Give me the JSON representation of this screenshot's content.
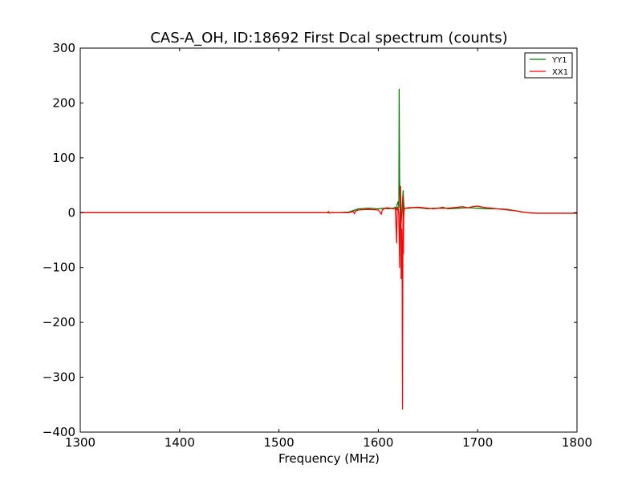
{
  "chart_data": {
    "type": "line",
    "title": "CAS-A_OH, ID:18692 First Dcal spectrum (counts)",
    "xlabel": "Frequency (MHz)",
    "ylabel": "",
    "xlim": [
      1300,
      1800
    ],
    "ylim": [
      -400,
      300
    ],
    "xticks": [
      1300,
      1400,
      1500,
      1600,
      1700,
      1800
    ],
    "yticks": [
      -400,
      -300,
      -200,
      -100,
      0,
      100,
      200,
      300
    ],
    "grid": false,
    "legend_position": "top-right",
    "series": [
      {
        "name": "YY1",
        "color": "#008000",
        "points": [
          [
            1300,
            0
          ],
          [
            1540,
            0
          ],
          [
            1560,
            0
          ],
          [
            1570,
            1
          ],
          [
            1575,
            4
          ],
          [
            1580,
            7
          ],
          [
            1590,
            8
          ],
          [
            1600,
            7
          ],
          [
            1605,
            8
          ],
          [
            1610,
            7
          ],
          [
            1615,
            8
          ],
          [
            1617,
            10
          ],
          [
            1618,
            5
          ],
          [
            1619,
            15
          ],
          [
            1620,
            20
          ],
          [
            1620.7,
            10
          ],
          [
            1621,
            225
          ],
          [
            1621.4,
            60
          ],
          [
            1622,
            20
          ],
          [
            1623,
            -20
          ],
          [
            1624,
            10
          ],
          [
            1625,
            40
          ],
          [
            1625.5,
            20
          ],
          [
            1626,
            8
          ],
          [
            1630,
            8
          ],
          [
            1635,
            9
          ],
          [
            1640,
            9
          ],
          [
            1650,
            7
          ],
          [
            1655,
            8
          ],
          [
            1660,
            8
          ],
          [
            1665,
            10
          ],
          [
            1670,
            7
          ],
          [
            1680,
            8
          ],
          [
            1690,
            9
          ],
          [
            1700,
            8
          ],
          [
            1710,
            7
          ],
          [
            1720,
            7
          ],
          [
            1730,
            6
          ],
          [
            1740,
            3
          ],
          [
            1750,
            0
          ],
          [
            1760,
            -1
          ],
          [
            1770,
            -1
          ],
          [
            1800,
            -1
          ]
        ]
      },
      {
        "name": "XX1",
        "color": "#ff0000",
        "points": [
          [
            1300,
            0
          ],
          [
            1548,
            0
          ],
          [
            1550,
            2
          ],
          [
            1551,
            -1
          ],
          [
            1552,
            0
          ],
          [
            1570,
            0
          ],
          [
            1575,
            2
          ],
          [
            1576,
            -2
          ],
          [
            1577,
            3
          ],
          [
            1580,
            5
          ],
          [
            1590,
            6
          ],
          [
            1600,
            5
          ],
          [
            1602,
            0
          ],
          [
            1603,
            -3
          ],
          [
            1604,
            5
          ],
          [
            1608,
            9
          ],
          [
            1612,
            8
          ],
          [
            1615,
            7
          ],
          [
            1617,
            8
          ],
          [
            1618,
            -30
          ],
          [
            1618.5,
            -55
          ],
          [
            1619,
            5
          ],
          [
            1619.5,
            10
          ],
          [
            1620,
            8
          ],
          [
            1620.5,
            0
          ],
          [
            1621,
            -40
          ],
          [
            1621.5,
            -100
          ],
          [
            1622,
            20
          ],
          [
            1622.4,
            48
          ],
          [
            1622.8,
            0
          ],
          [
            1623,
            -120
          ],
          [
            1623.5,
            -30
          ],
          [
            1624,
            -80
          ],
          [
            1624.4,
            -358
          ],
          [
            1624.8,
            -20
          ],
          [
            1625,
            30
          ],
          [
            1625.3,
            -75
          ],
          [
            1625.6,
            -10
          ],
          [
            1626,
            5
          ],
          [
            1627,
            8
          ],
          [
            1630,
            9
          ],
          [
            1640,
            10
          ],
          [
            1650,
            8
          ],
          [
            1655,
            7
          ],
          [
            1660,
            8
          ],
          [
            1670,
            8
          ],
          [
            1680,
            10
          ],
          [
            1685,
            11
          ],
          [
            1690,
            9
          ],
          [
            1695,
            11
          ],
          [
            1700,
            12
          ],
          [
            1705,
            10
          ],
          [
            1710,
            9
          ],
          [
            1720,
            7
          ],
          [
            1730,
            5
          ],
          [
            1740,
            3
          ],
          [
            1745,
            1
          ],
          [
            1750,
            0
          ],
          [
            1760,
            -1
          ],
          [
            1800,
            -1
          ]
        ]
      }
    ]
  }
}
